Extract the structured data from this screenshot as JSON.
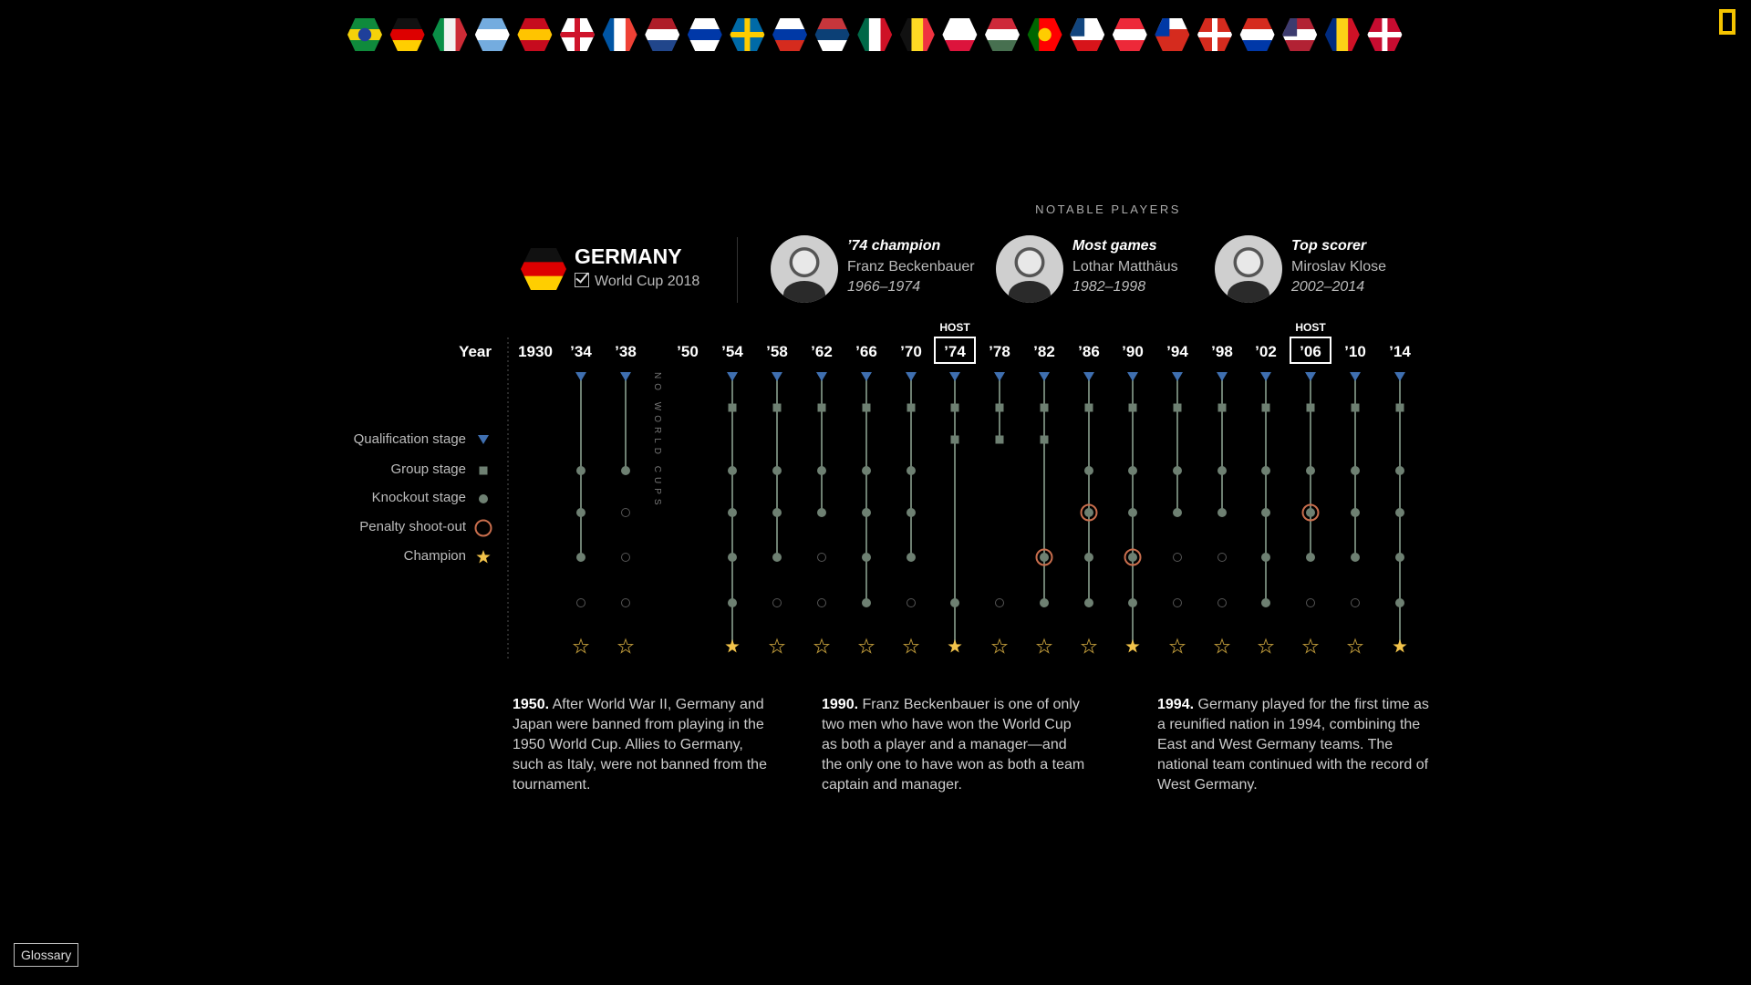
{
  "flags": [
    {
      "name": "brazil",
      "stripes": [
        "#0f8a3c",
        "#f5d20a",
        "#0f8a3c"
      ],
      "dir": "h",
      "emblem": "#1f3f9a"
    },
    {
      "name": "germany",
      "stripes": [
        "#111111",
        "#dd0000",
        "#ffce00"
      ],
      "dir": "h",
      "active": true
    },
    {
      "name": "italy",
      "stripes": [
        "#0a8f47",
        "#f2f2f2",
        "#cd2b36"
      ],
      "dir": "v"
    },
    {
      "name": "argentina",
      "stripes": [
        "#74acdf",
        "#ffffff",
        "#74acdf"
      ],
      "dir": "h"
    },
    {
      "name": "spain",
      "stripes": [
        "#c60b1e",
        "#ffc400",
        "#c60b1e"
      ],
      "dir": "h"
    },
    {
      "name": "england",
      "stripes": [
        "#ffffff",
        "#ffffff",
        "#ffffff"
      ],
      "dir": "h",
      "cross": "#cf142b"
    },
    {
      "name": "france",
      "stripes": [
        "#0055a4",
        "#ffffff",
        "#ef4135"
      ],
      "dir": "v"
    },
    {
      "name": "netherlands",
      "stripes": [
        "#ae1c28",
        "#ffffff",
        "#21468b"
      ],
      "dir": "h"
    },
    {
      "name": "uruguay",
      "stripes": [
        "#ffffff",
        "#0038a8",
        "#ffffff"
      ],
      "dir": "h"
    },
    {
      "name": "sweden",
      "stripes": [
        "#006aa7",
        "#006aa7",
        "#006aa7"
      ],
      "dir": "h",
      "cross": "#fecc00"
    },
    {
      "name": "russia",
      "stripes": [
        "#ffffff",
        "#0039a6",
        "#d52b1e"
      ],
      "dir": "h"
    },
    {
      "name": "serbia",
      "stripes": [
        "#c6363c",
        "#0c4076",
        "#ffffff"
      ],
      "dir": "h"
    },
    {
      "name": "mexico",
      "stripes": [
        "#006847",
        "#ffffff",
        "#ce1126"
      ],
      "dir": "v"
    },
    {
      "name": "belgium",
      "stripes": [
        "#111111",
        "#fdda24",
        "#ef3340"
      ],
      "dir": "v"
    },
    {
      "name": "poland",
      "stripes": [
        "#ffffff",
        "#ffffff",
        "#dc143c"
      ],
      "dir": "h"
    },
    {
      "name": "hungary",
      "stripes": [
        "#ce2939",
        "#ffffff",
        "#477050"
      ],
      "dir": "h"
    },
    {
      "name": "portugal",
      "stripes": [
        "#006600",
        "#ff0000",
        "#ff0000"
      ],
      "dir": "v",
      "emblem": "#ffcc00"
    },
    {
      "name": "czech-republic",
      "stripes": [
        "#ffffff",
        "#ffffff",
        "#d7141a"
      ],
      "dir": "h",
      "wedge": "#11457e"
    },
    {
      "name": "austria",
      "stripes": [
        "#ed2939",
        "#ffffff",
        "#ed2939"
      ],
      "dir": "h"
    },
    {
      "name": "chile",
      "stripes": [
        "#ffffff",
        "#d52b1e",
        "#d52b1e"
      ],
      "dir": "h",
      "wedge": "#0039a6"
    },
    {
      "name": "switzerland",
      "stripes": [
        "#d52b1e",
        "#d52b1e",
        "#d52b1e"
      ],
      "dir": "h",
      "cross": "#ffffff"
    },
    {
      "name": "paraguay",
      "stripes": [
        "#d52b1e",
        "#ffffff",
        "#0038a8"
      ],
      "dir": "h"
    },
    {
      "name": "usa",
      "stripes": [
        "#b22234",
        "#ffffff",
        "#b22234"
      ],
      "dir": "h",
      "wedge": "#3c3b6e"
    },
    {
      "name": "romania",
      "stripes": [
        "#002b7f",
        "#fcd116",
        "#ce1126"
      ],
      "dir": "v"
    },
    {
      "name": "denmark",
      "stripes": [
        "#c60c30",
        "#c60c30",
        "#c60c30"
      ],
      "dir": "h",
      "cross": "#ffffff"
    }
  ],
  "team": {
    "name": "GERMANY",
    "subtitle": "World Cup 2018",
    "flag": [
      "#111111",
      "#dd0000",
      "#ffce00"
    ]
  },
  "notable_heading": "NOTABLE PLAYERS",
  "players": [
    {
      "role": "’74 champion",
      "name": "Franz Beckenbauer",
      "years": "1966–1974"
    },
    {
      "role": "Most games",
      "name": "Lothar Matthäus",
      "years": "1982–1998"
    },
    {
      "role": "Top scorer",
      "name": "Miroslav Klose",
      "years": "2002–2014"
    }
  ],
  "timeline": {
    "year_header": "Year",
    "no_world_cups_label": "NO WORLD CUPS",
    "host_label": "HOST",
    "colors": {
      "qualification": "#3f6fb0",
      "stage": "#6e8072",
      "penalty": "#c96e4d",
      "champion": "#f2c34a",
      "empty": "#555555"
    },
    "legend": [
      {
        "label": "Qualification stage",
        "marker": "triangle"
      },
      {
        "label": "Group stage",
        "marker": "square"
      },
      {
        "label": "Knockout stage",
        "marker": "dot"
      },
      {
        "label": "Penalty shoot-out",
        "marker": "ring"
      },
      {
        "label": "Champion",
        "marker": "star"
      }
    ],
    "years": [
      {
        "label": "1930",
        "rows": null
      },
      {
        "label": "’34",
        "rows": [
          "tri",
          "none",
          "none",
          "dot",
          "dot",
          "dot",
          "empty",
          "star-empty"
        ]
      },
      {
        "label": "’38",
        "rows": [
          "tri",
          "none",
          "none",
          "dot",
          "empty",
          "empty",
          "empty",
          "star-empty"
        ]
      },
      {
        "label": "’50",
        "rows": null,
        "gap": true
      },
      {
        "label": "’54",
        "rows": [
          "tri",
          "sq",
          "none",
          "dot",
          "dot",
          "dot",
          "dot",
          "star"
        ]
      },
      {
        "label": "’58",
        "rows": [
          "tri",
          "sq",
          "none",
          "dot",
          "dot",
          "dot",
          "empty",
          "star-empty"
        ]
      },
      {
        "label": "’62",
        "rows": [
          "tri",
          "sq",
          "none",
          "dot",
          "dot",
          "empty",
          "empty",
          "star-empty"
        ]
      },
      {
        "label": "’66",
        "rows": [
          "tri",
          "sq",
          "none",
          "dot",
          "dot",
          "dot",
          "dot",
          "star-empty"
        ]
      },
      {
        "label": "’70",
        "rows": [
          "tri",
          "sq",
          "none",
          "dot",
          "dot",
          "dot",
          "empty",
          "star-empty"
        ]
      },
      {
        "label": "’74",
        "rows": [
          "tri",
          "sq",
          "sq",
          "none",
          "none",
          "none",
          "dot",
          "star"
        ],
        "host": true
      },
      {
        "label": "’78",
        "rows": [
          "tri",
          "sq",
          "sq",
          "none",
          "none",
          "none",
          "empty",
          "star-empty"
        ]
      },
      {
        "label": "’82",
        "rows": [
          "tri",
          "sq",
          "sq",
          "none",
          "none",
          "pen",
          "dot",
          "star-empty"
        ]
      },
      {
        "label": "’86",
        "rows": [
          "tri",
          "sq",
          "none",
          "dot",
          "pen",
          "dot",
          "dot",
          "star-empty"
        ]
      },
      {
        "label": "’90",
        "rows": [
          "tri",
          "sq",
          "none",
          "dot",
          "dot",
          "pen",
          "dot",
          "star"
        ]
      },
      {
        "label": "’94",
        "rows": [
          "tri",
          "sq",
          "none",
          "dot",
          "dot",
          "empty",
          "empty",
          "star-empty"
        ]
      },
      {
        "label": "’98",
        "rows": [
          "tri",
          "sq",
          "none",
          "dot",
          "dot",
          "empty",
          "empty",
          "star-empty"
        ]
      },
      {
        "label": "’02",
        "rows": [
          "tri",
          "sq",
          "none",
          "dot",
          "dot",
          "dot",
          "dot",
          "star-empty"
        ]
      },
      {
        "label": "’06",
        "rows": [
          "tri",
          "sq",
          "none",
          "dot",
          "pen",
          "dot",
          "empty",
          "star-empty"
        ],
        "host": true
      },
      {
        "label": "’10",
        "rows": [
          "tri",
          "sq",
          "none",
          "dot",
          "dot",
          "dot",
          "empty",
          "star-empty"
        ]
      },
      {
        "label": "’14",
        "rows": [
          "tri",
          "sq",
          "none",
          "dot",
          "dot",
          "dot",
          "dot",
          "star"
        ]
      }
    ]
  },
  "notes": [
    {
      "year": "1950.",
      "text": "After World War II, Germany and Japan were banned from playing in the 1950 World Cup. Allies to Germany, such as Italy, were not banned from the tournament."
    },
    {
      "year": "1990.",
      "text": "Franz Beckenbauer is one of only two men who have won the World Cup as both a player and a manager—and the only one to have won as both a team captain and manager."
    },
    {
      "year": "1994.",
      "text": "Germany played for the first time as a reunified nation in 1994, combining the East and West Germany teams. The national team continued with the record of West Germany."
    }
  ],
  "glossary_label": "Glossary"
}
